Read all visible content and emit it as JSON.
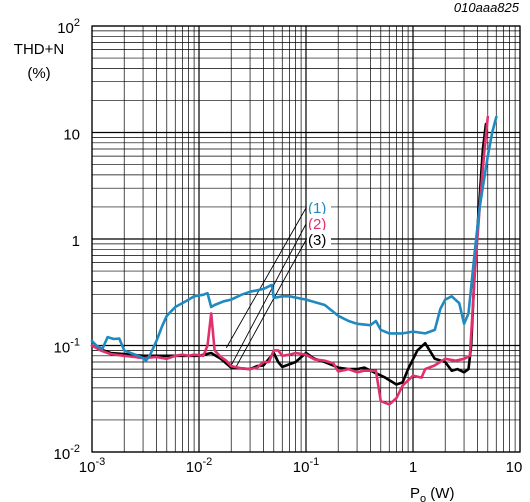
{
  "chart_data": {
    "type": "line",
    "figure_id": "010aaa825",
    "ylabel_main": "THD+N",
    "ylabel_unit": "(%)",
    "xlabel_main": "P",
    "xlabel_sub": "o",
    "xlabel_unit": " (W)",
    "x_scale": "log",
    "y_scale": "log",
    "xlim": [
      0.001,
      10
    ],
    "ylim": [
      0.01,
      100
    ],
    "grid": true,
    "x_ticks": [
      {
        "value": 0.001,
        "base": "10",
        "exp": "-3"
      },
      {
        "value": 0.01,
        "base": "10",
        "exp": "-2"
      },
      {
        "value": 0.1,
        "base": "10",
        "exp": "-1"
      },
      {
        "value": 1,
        "base": "1",
        "exp": ""
      },
      {
        "value": 10,
        "base": "10",
        "exp": ""
      }
    ],
    "y_ticks": [
      {
        "value": 0.01,
        "base": "10",
        "exp": "-2"
      },
      {
        "value": 0.1,
        "base": "10",
        "exp": "-1"
      },
      {
        "value": 1,
        "base": "1",
        "exp": ""
      },
      {
        "value": 10,
        "base": "10",
        "exp": ""
      },
      {
        "value": 100,
        "base": "10",
        "exp": "2"
      }
    ],
    "series": [
      {
        "name": "(1)",
        "color": "#1f8ac0",
        "callout_target": [
          0.018,
          0.095
        ],
        "points": [
          [
            0.001,
            0.11
          ],
          [
            0.0011,
            0.1
          ],
          [
            0.00125,
            0.093
          ],
          [
            0.0014,
            0.12
          ],
          [
            0.0016,
            0.115
          ],
          [
            0.0018,
            0.116
          ],
          [
            0.002,
            0.09
          ],
          [
            0.0023,
            0.085
          ],
          [
            0.0027,
            0.08
          ],
          [
            0.003,
            0.076
          ],
          [
            0.0032,
            0.072
          ],
          [
            0.0035,
            0.082
          ],
          [
            0.004,
            0.11
          ],
          [
            0.0045,
            0.15
          ],
          [
            0.005,
            0.19
          ],
          [
            0.006,
            0.23
          ],
          [
            0.007,
            0.25
          ],
          [
            0.008,
            0.27
          ],
          [
            0.009,
            0.29
          ],
          [
            0.011,
            0.3
          ],
          [
            0.012,
            0.31
          ],
          [
            0.013,
            0.23
          ],
          [
            0.014,
            0.24
          ],
          [
            0.017,
            0.26
          ],
          [
            0.02,
            0.27
          ],
          [
            0.025,
            0.3
          ],
          [
            0.03,
            0.32
          ],
          [
            0.035,
            0.33
          ],
          [
            0.04,
            0.34
          ],
          [
            0.045,
            0.36
          ],
          [
            0.048,
            0.37
          ],
          [
            0.05,
            0.28
          ],
          [
            0.06,
            0.29
          ],
          [
            0.07,
            0.29
          ],
          [
            0.1,
            0.27
          ],
          [
            0.15,
            0.24
          ],
          [
            0.2,
            0.19
          ],
          [
            0.25,
            0.17
          ],
          [
            0.3,
            0.16
          ],
          [
            0.4,
            0.155
          ],
          [
            0.45,
            0.17
          ],
          [
            0.5,
            0.14
          ],
          [
            0.6,
            0.13
          ],
          [
            0.8,
            0.13
          ],
          [
            1,
            0.135
          ],
          [
            1.3,
            0.13
          ],
          [
            1.6,
            0.14
          ],
          [
            1.8,
            0.22
          ],
          [
            2,
            0.27
          ],
          [
            2.3,
            0.29
          ],
          [
            2.7,
            0.25
          ],
          [
            3,
            0.16
          ],
          [
            3.3,
            0.2
          ],
          [
            3.8,
            0.8
          ],
          [
            4.2,
            2
          ],
          [
            5,
            6
          ],
          [
            5.5,
            10
          ],
          [
            6,
            14
          ]
        ]
      },
      {
        "name": "(2)",
        "color": "#e0306e",
        "callout_target": [
          0.02,
          0.065
        ],
        "points": [
          [
            0.001,
            0.1
          ],
          [
            0.0012,
            0.09
          ],
          [
            0.0015,
            0.083
          ],
          [
            0.002,
            0.08
          ],
          [
            0.0025,
            0.078
          ],
          [
            0.003,
            0.076
          ],
          [
            0.004,
            0.078
          ],
          [
            0.005,
            0.075
          ],
          [
            0.006,
            0.08
          ],
          [
            0.007,
            0.082
          ],
          [
            0.008,
            0.08
          ],
          [
            0.009,
            0.082
          ],
          [
            0.011,
            0.08
          ],
          [
            0.012,
            0.1
          ],
          [
            0.013,
            0.2
          ],
          [
            0.014,
            0.09
          ],
          [
            0.016,
            0.078
          ],
          [
            0.018,
            0.072
          ],
          [
            0.02,
            0.064
          ],
          [
            0.025,
            0.061
          ],
          [
            0.03,
            0.06
          ],
          [
            0.035,
            0.062
          ],
          [
            0.04,
            0.07
          ],
          [
            0.045,
            0.07
          ],
          [
            0.05,
            0.09
          ],
          [
            0.055,
            0.09
          ],
          [
            0.06,
            0.08
          ],
          [
            0.07,
            0.082
          ],
          [
            0.08,
            0.085
          ],
          [
            0.1,
            0.082
          ],
          [
            0.12,
            0.074
          ],
          [
            0.15,
            0.072
          ],
          [
            0.18,
            0.068
          ],
          [
            0.2,
            0.057
          ],
          [
            0.25,
            0.06
          ],
          [
            0.3,
            0.056
          ],
          [
            0.35,
            0.058
          ],
          [
            0.45,
            0.058
          ],
          [
            0.5,
            0.03
          ],
          [
            0.6,
            0.028
          ],
          [
            0.7,
            0.032
          ],
          [
            0.8,
            0.042
          ],
          [
            1,
            0.052
          ],
          [
            1.2,
            0.05
          ],
          [
            1.3,
            0.06
          ],
          [
            1.6,
            0.065
          ],
          [
            2,
            0.075
          ],
          [
            2.5,
            0.072
          ],
          [
            3,
            0.075
          ],
          [
            3.4,
            0.08
          ],
          [
            3.8,
            0.5
          ],
          [
            4.2,
            2
          ],
          [
            4.6,
            6
          ],
          [
            5,
            14
          ]
        ]
      },
      {
        "name": "(3)",
        "color": "#000000",
        "callout_target": [
          0.022,
          0.062
        ],
        "points": [
          [
            0.001,
            0.1
          ],
          [
            0.0012,
            0.092
          ],
          [
            0.0015,
            0.085
          ],
          [
            0.002,
            0.083
          ],
          [
            0.003,
            0.08
          ],
          [
            0.004,
            0.08
          ],
          [
            0.005,
            0.08
          ],
          [
            0.007,
            0.08
          ],
          [
            0.01,
            0.08
          ],
          [
            0.013,
            0.085
          ],
          [
            0.016,
            0.075
          ],
          [
            0.02,
            0.062
          ],
          [
            0.025,
            0.061
          ],
          [
            0.03,
            0.06
          ],
          [
            0.035,
            0.064
          ],
          [
            0.04,
            0.065
          ],
          [
            0.05,
            0.085
          ],
          [
            0.055,
            0.07
          ],
          [
            0.06,
            0.063
          ],
          [
            0.08,
            0.07
          ],
          [
            0.1,
            0.085
          ],
          [
            0.12,
            0.075
          ],
          [
            0.15,
            0.07
          ],
          [
            0.2,
            0.062
          ],
          [
            0.25,
            0.06
          ],
          [
            0.3,
            0.06
          ],
          [
            0.35,
            0.062
          ],
          [
            0.45,
            0.055
          ],
          [
            0.55,
            0.05
          ],
          [
            0.7,
            0.043
          ],
          [
            0.8,
            0.045
          ],
          [
            0.9,
            0.06
          ],
          [
            1.1,
            0.09
          ],
          [
            1.3,
            0.105
          ],
          [
            1.6,
            0.075
          ],
          [
            2,
            0.07
          ],
          [
            2.3,
            0.058
          ],
          [
            2.6,
            0.06
          ],
          [
            3,
            0.056
          ],
          [
            3.3,
            0.06
          ],
          [
            3.5,
            0.1
          ],
          [
            3.8,
            0.6
          ],
          [
            4.2,
            2.5
          ],
          [
            4.5,
            7
          ],
          [
            4.8,
            12
          ]
        ]
      }
    ]
  }
}
